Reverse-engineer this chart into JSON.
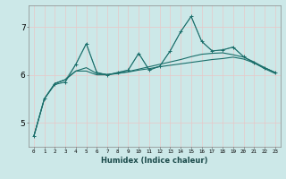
{
  "title": "",
  "xlabel": "Humidex (Indice chaleur)",
  "background_color": "#cce8e8",
  "grid_color": "#e8c8c8",
  "line_color": "#1a6e6a",
  "xlim": [
    -0.5,
    23.5
  ],
  "ylim": [
    4.5,
    7.45
  ],
  "yticks": [
    5,
    6,
    7
  ],
  "xticks": [
    0,
    1,
    2,
    3,
    4,
    5,
    6,
    7,
    8,
    9,
    10,
    11,
    12,
    13,
    14,
    15,
    16,
    17,
    18,
    19,
    20,
    21,
    22,
    23
  ],
  "series1_x": [
    0,
    1,
    2,
    3,
    4,
    5,
    6,
    7,
    8,
    9,
    10,
    11,
    12,
    13,
    14,
    15,
    16,
    17,
    18,
    19,
    20,
    21,
    22,
    23
  ],
  "series1_y": [
    4.72,
    5.5,
    5.8,
    5.85,
    6.22,
    6.65,
    6.05,
    6.0,
    6.05,
    6.1,
    6.45,
    6.1,
    6.18,
    6.5,
    6.9,
    7.22,
    6.7,
    6.5,
    6.52,
    6.58,
    6.38,
    6.25,
    6.15,
    6.05
  ],
  "series2_x": [
    0,
    1,
    2,
    3,
    4,
    5,
    6,
    7,
    8,
    9,
    10,
    11,
    12,
    13,
    14,
    15,
    16,
    17,
    18,
    19,
    20,
    21,
    22,
    23
  ],
  "series2_y": [
    4.72,
    5.5,
    5.82,
    5.9,
    6.08,
    6.15,
    6.03,
    6.01,
    6.03,
    6.06,
    6.1,
    6.13,
    6.17,
    6.2,
    6.23,
    6.26,
    6.29,
    6.32,
    6.34,
    6.37,
    6.33,
    6.25,
    6.13,
    6.03
  ],
  "series3_x": [
    0,
    1,
    2,
    3,
    4,
    5,
    6,
    7,
    8,
    9,
    10,
    11,
    12,
    13,
    14,
    15,
    16,
    17,
    18,
    19,
    20,
    21,
    22,
    23
  ],
  "series3_y": [
    4.72,
    5.5,
    5.82,
    5.9,
    6.08,
    6.08,
    6.0,
    6.0,
    6.03,
    6.07,
    6.12,
    6.17,
    6.22,
    6.27,
    6.32,
    6.38,
    6.43,
    6.45,
    6.46,
    6.42,
    6.37,
    6.27,
    6.15,
    6.05
  ],
  "series4_x": [
    2,
    3,
    4,
    5,
    6,
    7,
    8,
    9,
    10,
    11,
    12,
    13,
    14,
    15,
    16,
    17,
    18,
    19,
    20,
    21,
    22,
    23
  ],
  "series4_y": [
    5.82,
    5.9,
    6.22,
    6.65,
    6.05,
    6.0,
    6.05,
    6.1,
    6.45,
    6.1,
    6.18,
    6.5,
    6.9,
    7.22,
    6.7,
    6.5,
    6.52,
    6.58,
    6.38,
    6.25,
    6.15,
    6.05
  ]
}
